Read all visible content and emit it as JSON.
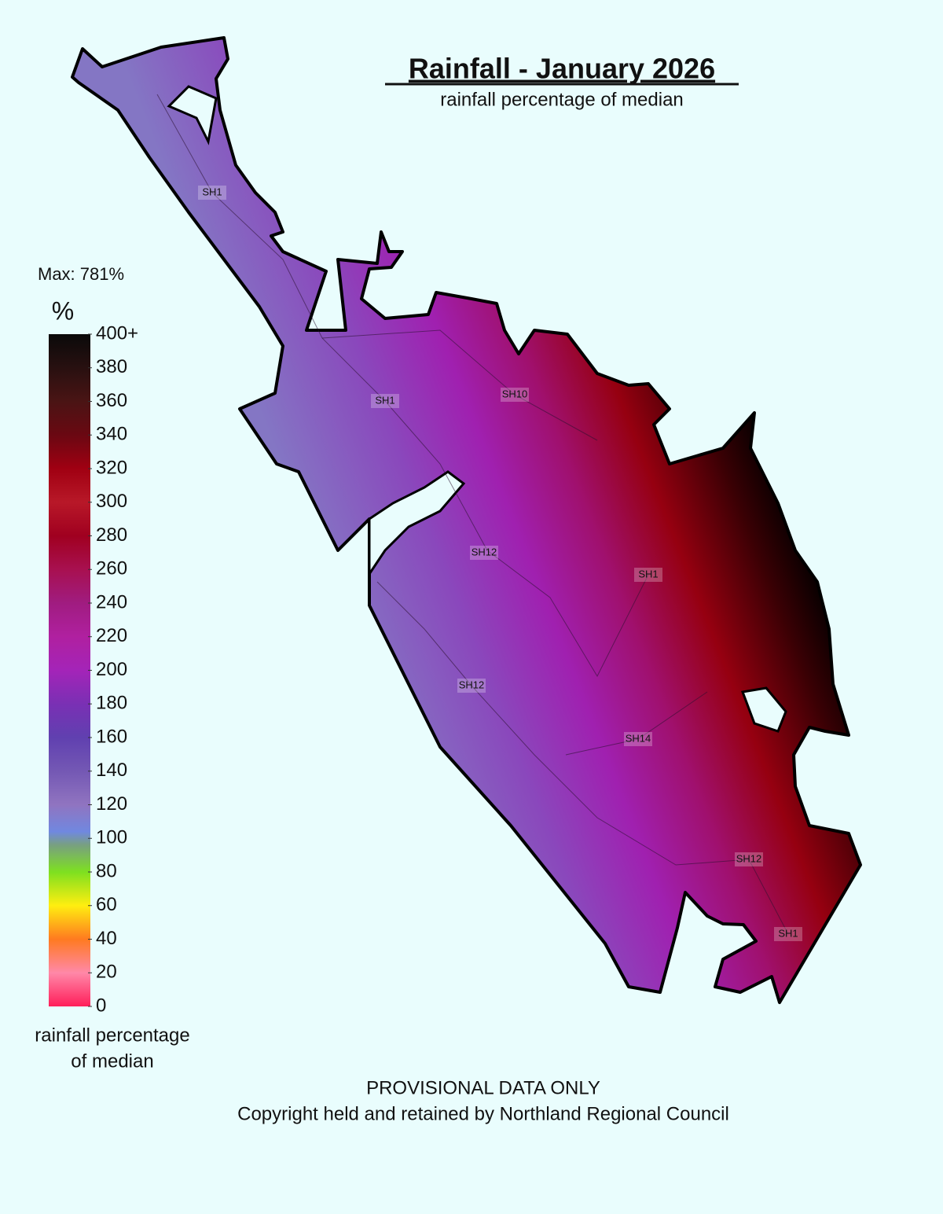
{
  "header": {
    "title": "Rainfall - January 2026",
    "subtitle": "rainfall percentage of median"
  },
  "legend": {
    "max_label": "Max: 781%",
    "unit": "%",
    "ticks": [
      {
        "value": 400,
        "label": "400+"
      },
      380,
      360,
      340,
      320,
      300,
      280,
      260,
      240,
      220,
      200,
      180,
      160,
      140,
      120,
      100,
      80,
      60,
      40,
      20,
      0
    ],
    "caption": [
      "rainfall percentage",
      "of median"
    ]
  },
  "map": {
    "road_labels": [
      "SH1",
      "SH1",
      "SH10",
      "SH12",
      "SH1",
      "SH12",
      "SH14",
      "SH12",
      "SH1"
    ]
  },
  "footer": [
    "PROVISIONAL DATA ONLY",
    "Copyright held and retained by Northland Regional Council"
  ]
}
